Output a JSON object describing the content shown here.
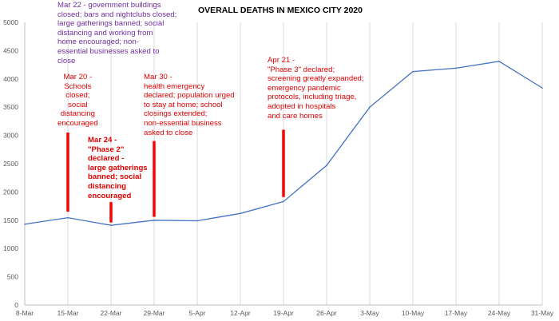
{
  "colors": {
    "series_line": "#4472c4",
    "gridline": "#d9d9d9",
    "axis": "#bfbfbf",
    "marker_bar": "#ff0000",
    "annotation_red": "#e00000",
    "annotation_purple": "#7030a0"
  },
  "chart_data": {
    "type": "line",
    "title": "OVERALL DEATHS IN MEXICO CITY 2020",
    "xlabel": "",
    "ylabel": "",
    "categories": [
      "8-Mar",
      "15-Mar",
      "22-Mar",
      "29-Mar",
      "5-Apr",
      "12-Apr",
      "19-Apr",
      "26-Apr",
      "3-May",
      "10-May",
      "17-May",
      "24-May",
      "31-May"
    ],
    "values": [
      1430,
      1545,
      1410,
      1500,
      1490,
      1620,
      1830,
      2470,
      3500,
      4130,
      4190,
      4310,
      3840
    ],
    "ylim": [
      0,
      5000
    ],
    "yticks": [
      "0",
      "500",
      "1000",
      "1500",
      "2000",
      "2500",
      "3000",
      "3500",
      "4000",
      "4500",
      "5000"
    ],
    "grid": "vertical",
    "legend": "none",
    "annotations": [
      {
        "id": "mar22",
        "text": "Mar 22 - government buildings\nclosed; bars and nightclubs closed;\nlarge gatherings banned; social\ndistancing and working from\nhome encouraged; non-\nessential businesses asked to\nclose",
        "color": "purple"
      },
      {
        "id": "mar20",
        "text": "Mar 20 -\nSchools\nclosed;\nsocial\ndistancing\nencouraged",
        "color": "red"
      },
      {
        "id": "mar24",
        "text": "Mar 24 -\n\"Phase 2\"\ndeclared -\nlarge gatherings\nbanned; social\ndistancing\nencouraged",
        "color": "red",
        "bold": true
      },
      {
        "id": "mar30",
        "text": "Mar 30 -\nhealth emergency\ndeclared; population urged\nto stay at home; school\nclosings extended;\nnon-essential business\nasked to close",
        "color": "red"
      },
      {
        "id": "apr21",
        "text": "Apr 21 -\n\"Phase 3\" declared;\nscreening greatly expanded;\nemergency pandemic\nprotocols, including triage,\nadopted in hospitals\nand care homes",
        "color": "red"
      }
    ],
    "marker_lines": [
      {
        "id": "mar20-line",
        "x_category": "15-Mar",
        "y_from": 1650,
        "y_to": 3050
      },
      {
        "id": "mar24-line",
        "x_category": "22-Mar",
        "y_from": 1460,
        "y_to": 1820
      },
      {
        "id": "mar30-line",
        "x_category": "29-Mar",
        "y_from": 1560,
        "y_to": 2900
      },
      {
        "id": "apr21-line",
        "x_category": "19-Apr",
        "y_from": 1910,
        "y_to": 3100
      }
    ]
  }
}
